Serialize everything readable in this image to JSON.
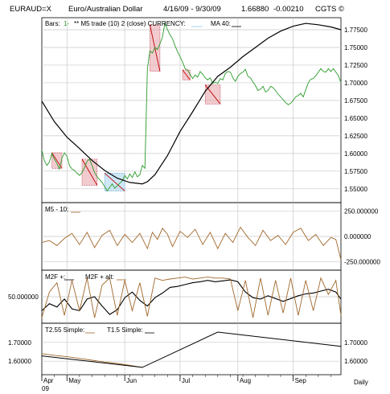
{
  "header": {
    "symbol": "EURAUD=X",
    "name": "Euro/Australian Dollar",
    "date_range": "4/16/09 - 9/30/09",
    "last": "1.66880",
    "change": "-0.00210",
    "copyright": "CGTS ©"
  },
  "frequency_label": "Daily",
  "x_axis": {
    "months": [
      "Apr",
      "May",
      "Jun",
      "Jul",
      "Aug",
      "Sep"
    ],
    "year": "09"
  },
  "colors": {
    "price": "#2a9a2a",
    "ma": "#000000",
    "osc": "#a0672a",
    "box_red": "#e8a0a8",
    "box_blue": "#a8d4ec"
  },
  "chart_data": [
    {
      "type": "line",
      "panel": "price",
      "legend": [
        "Bars: ",
        "** M5 trade (10) 2 (close) CURRENCY: ",
        "MA 40:"
      ],
      "ylim": [
        1.535,
        1.7875
      ],
      "yticks": [
        "1.77500",
        "1.75000",
        "1.72500",
        "1.70000",
        "1.67500",
        "1.65000",
        "1.62500",
        "1.60000",
        "1.57500",
        "1.55000"
      ],
      "x_domain": [
        0,
        119
      ],
      "series": [
        {
          "name": "Bars",
          "x": [
            0,
            1,
            2,
            3,
            4,
            5,
            6,
            7,
            8,
            9,
            10,
            11,
            12,
            13,
            14,
            15,
            16,
            17,
            18,
            19,
            20,
            21,
            22,
            23,
            24,
            25,
            26,
            27,
            28,
            29,
            30,
            31,
            32,
            33,
            34,
            35,
            36,
            37,
            38,
            39,
            40,
            41,
            42,
            43,
            44,
            45,
            46,
            47,
            48,
            49,
            50,
            51,
            52,
            53,
            54,
            55,
            56,
            57,
            58,
            59,
            60,
            61,
            62,
            63,
            64,
            65,
            66,
            67,
            68,
            69,
            70,
            71,
            72,
            73,
            74,
            75,
            76,
            77,
            78,
            79,
            80,
            81,
            82,
            83,
            84,
            85,
            86,
            87,
            88,
            89,
            90,
            91,
            92,
            93,
            94,
            95,
            96,
            97,
            98,
            99,
            100,
            101,
            102,
            103,
            104,
            105,
            106,
            107,
            108,
            109,
            110,
            111,
            112,
            113,
            114,
            115,
            116,
            117,
            118,
            119
          ],
          "values": [
            1.605,
            1.59,
            1.583,
            1.588,
            1.6,
            1.592,
            1.586,
            1.578,
            1.593,
            1.601,
            1.596,
            1.583,
            1.578,
            1.576,
            1.572,
            1.569,
            1.573,
            1.58,
            1.589,
            1.592,
            1.583,
            1.573,
            1.567,
            1.563,
            1.559,
            1.553,
            1.547,
            1.552,
            1.557,
            1.551,
            1.554,
            1.558,
            1.561,
            1.569,
            1.564,
            1.571,
            1.566,
            1.574,
            1.567,
            1.57,
            1.583,
            1.579,
            1.72,
            1.745,
            1.742,
            1.75,
            1.747,
            1.755,
            1.765,
            1.785,
            1.775,
            1.768,
            1.762,
            1.752,
            1.744,
            1.737,
            1.729,
            1.72,
            1.718,
            1.712,
            1.706,
            1.711,
            1.708,
            1.716,
            1.712,
            1.707,
            1.704,
            1.707,
            1.699,
            1.701,
            1.699,
            1.706,
            1.704,
            1.713,
            1.716,
            1.715,
            1.707,
            1.702,
            1.709,
            1.713,
            1.715,
            1.719,
            1.709,
            1.707,
            1.701,
            1.696,
            1.689,
            1.691,
            1.695,
            1.687,
            1.689,
            1.695,
            1.693,
            1.689,
            1.684,
            1.68,
            1.676,
            1.672,
            1.669,
            1.671,
            1.675,
            1.68,
            1.682,
            1.685,
            1.68,
            1.69,
            1.7,
            1.705,
            1.706,
            1.71,
            1.715,
            1.72,
            1.716,
            1.715,
            1.72,
            1.716,
            1.72,
            1.715,
            1.71,
            1.7
          ]
        },
        {
          "name": "MA 40",
          "x": [
            0,
            5,
            10,
            15,
            20,
            25,
            30,
            35,
            40,
            42,
            45,
            50,
            55,
            60,
            65,
            70,
            75,
            80,
            85,
            90,
            95,
            100,
            105,
            110,
            115,
            119
          ],
          "values": [
            1.674,
            1.645,
            1.623,
            1.607,
            1.59,
            1.576,
            1.565,
            1.559,
            1.557,
            1.56,
            1.57,
            1.597,
            1.631,
            1.659,
            1.688,
            1.709,
            1.722,
            1.737,
            1.75,
            1.763,
            1.773,
            1.78,
            1.784,
            1.782,
            1.779,
            1.775
          ]
        }
      ]
    },
    {
      "type": "line",
      "panel": "oscillator",
      "legend": [
        "M5 - 10:"
      ],
      "ylim": [
        -300,
        300
      ],
      "yticks": [
        "250.000000",
        "0.000000",
        "-250.000000"
      ],
      "x_domain": [
        0,
        119
      ],
      "series": [
        {
          "name": "M5 - 10",
          "x": [
            0,
            3,
            6,
            9,
            12,
            15,
            18,
            21,
            24,
            27,
            30,
            33,
            36,
            39,
            42,
            44,
            46,
            48,
            50,
            52,
            55,
            58,
            61,
            64,
            67,
            70,
            73,
            76,
            79,
            82,
            85,
            88,
            91,
            94,
            97,
            100,
            103,
            106,
            109,
            112,
            115,
            117,
            119
          ],
          "values": [
            -60,
            -40,
            -90,
            -20,
            30,
            -80,
            40,
            -110,
            10,
            60,
            -90,
            20,
            -60,
            30,
            -120,
            40,
            -30,
            80,
            20,
            -100,
            50,
            -10,
            70,
            -80,
            40,
            -120,
            30,
            -60,
            90,
            -10,
            -90,
            60,
            -40,
            10,
            -80,
            40,
            80,
            -40,
            20,
            -90,
            -10,
            -30,
            -230
          ]
        }
      ]
    },
    {
      "type": "line",
      "panel": "m2f",
      "legend": [
        "M2F +:",
        "M2F + alt:"
      ],
      "ylim": [
        0,
        100
      ],
      "yticks": [
        "50.000000"
      ],
      "x_domain": [
        0,
        119
      ],
      "series": [
        {
          "name": "M2F +",
          "x": [
            0,
            3,
            6,
            9,
            12,
            15,
            18,
            21,
            24,
            27,
            30,
            33,
            36,
            39,
            42,
            45,
            48,
            51,
            54,
            57,
            60,
            63,
            66,
            69,
            72,
            75,
            78,
            81,
            84,
            87,
            90,
            93,
            96,
            99,
            102,
            105,
            108,
            111,
            114,
            117,
            119
          ],
          "values": [
            20,
            35,
            28,
            45,
            24,
            20,
            45,
            50,
            30,
            12,
            22,
            48,
            60,
            42,
            30,
            48,
            58,
            70,
            72,
            76,
            80,
            82,
            85,
            82,
            84,
            86,
            82,
            60,
            48,
            45,
            52,
            46,
            40,
            46,
            52,
            56,
            58,
            62,
            66,
            60,
            45
          ]
        },
        {
          "name": "M2F + alt",
          "x": [
            0,
            3,
            6,
            9,
            12,
            15,
            18,
            21,
            24,
            27,
            30,
            33,
            36,
            39,
            42,
            45,
            48,
            51,
            54,
            57,
            60,
            63,
            66,
            69,
            72,
            75,
            78,
            81,
            84,
            87,
            90,
            93,
            96,
            99,
            102,
            105,
            108,
            111,
            114,
            117,
            119
          ],
          "values": [
            5,
            60,
            80,
            10,
            85,
            20,
            90,
            5,
            75,
            90,
            10,
            85,
            20,
            80,
            8,
            90,
            85,
            88,
            90,
            92,
            88,
            90,
            92,
            90,
            90,
            88,
            20,
            85,
            5,
            90,
            10,
            85,
            15,
            90,
            10,
            85,
            20,
            90,
            55,
            85,
            10
          ]
        }
      ]
    },
    {
      "type": "line",
      "panel": "simple",
      "legend": [
        "T2.55 Simple:",
        "T1.5 Simple:"
      ],
      "ylim": [
        1.545,
        1.785
      ],
      "yticks": [
        "1.70000",
        "1.60000"
      ],
      "x_domain": [
        0,
        119
      ],
      "series": [
        {
          "name": "T2.55 Simple",
          "x": [
            0,
            5,
            10,
            15,
            20,
            25,
            30,
            35,
            40
          ],
          "values": [
            1.64,
            1.631,
            1.624,
            1.615,
            1.605,
            1.595,
            1.588,
            1.578,
            1.567
          ]
        },
        {
          "name": "T1.5 Simple",
          "x": [
            0,
            40,
            70,
            119
          ],
          "values": [
            1.628,
            1.567,
            1.755,
            1.679
          ]
        }
      ]
    }
  ]
}
